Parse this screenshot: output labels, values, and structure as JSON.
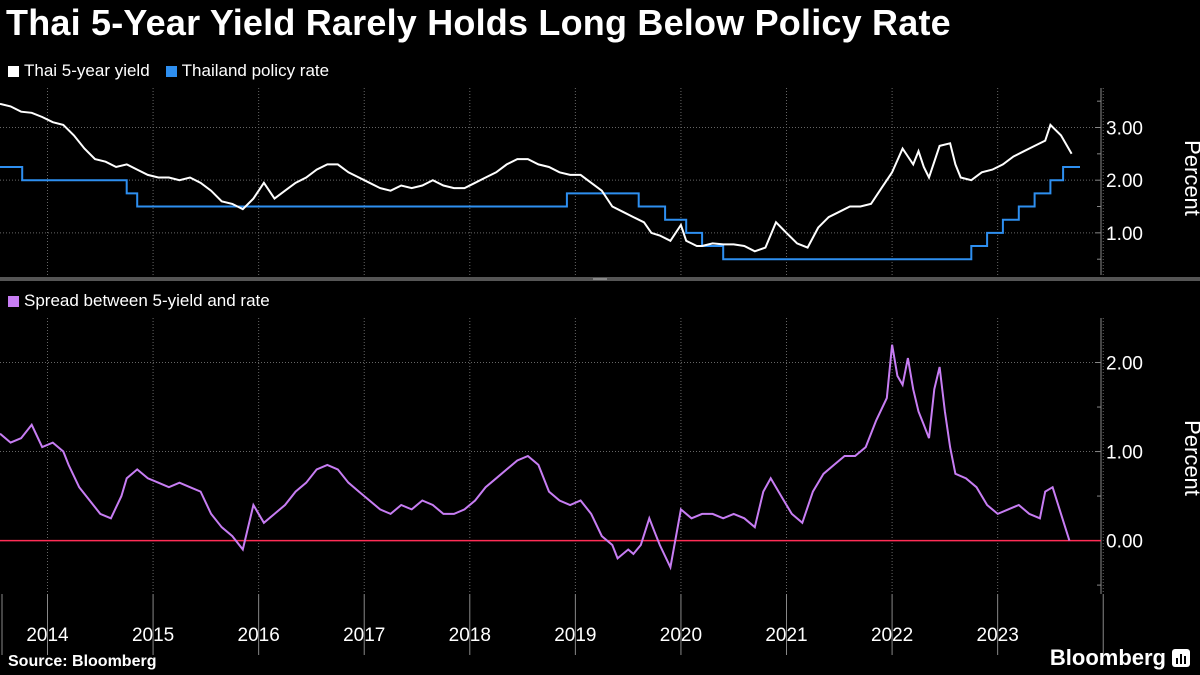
{
  "title": "Thai 5-Year Yield Rarely Holds Long Below Policy Rate",
  "source": "Source: Bloomberg",
  "brand": "Bloomberg",
  "colors": {
    "yield": "#ffffff",
    "policy": "#2e8ff0",
    "spread": "#c77df3",
    "zero_line": "#ff2d55",
    "grid": "#666666",
    "background": "#000000"
  },
  "chart_data": [
    {
      "type": "line",
      "panel": "top",
      "ylabel": "Percent",
      "ylim": [
        0.2,
        3.75
      ],
      "yticks": [
        1.0,
        2.0,
        3.0
      ],
      "ytick_labels": [
        "1.00",
        "2.00",
        "3.00"
      ],
      "legend": [
        "Thai 5-year yield",
        "Thailand policy rate"
      ],
      "xlim": [
        2013.55,
        2023.78
      ],
      "series": [
        {
          "name": "Thai 5-year yield",
          "x": [
            2013.55,
            2013.65,
            2013.75,
            2013.85,
            2013.95,
            2014.05,
            2014.15,
            2014.25,
            2014.35,
            2014.45,
            2014.55,
            2014.65,
            2014.75,
            2014.85,
            2014.95,
            2015.05,
            2015.15,
            2015.25,
            2015.35,
            2015.45,
            2015.55,
            2015.65,
            2015.75,
            2015.85,
            2015.95,
            2016.05,
            2016.1,
            2016.15,
            2016.25,
            2016.35,
            2016.45,
            2016.55,
            2016.65,
            2016.75,
            2016.85,
            2016.95,
            2017.05,
            2017.15,
            2017.25,
            2017.35,
            2017.45,
            2017.55,
            2017.65,
            2017.75,
            2017.85,
            2017.95,
            2018.05,
            2018.15,
            2018.25,
            2018.35,
            2018.45,
            2018.55,
            2018.65,
            2018.75,
            2018.85,
            2018.95,
            2019.05,
            2019.15,
            2019.25,
            2019.35,
            2019.45,
            2019.55,
            2019.65,
            2019.72,
            2019.8,
            2019.9,
            2020.0,
            2020.05,
            2020.1,
            2020.15,
            2020.2,
            2020.3,
            2020.4,
            2020.5,
            2020.6,
            2020.7,
            2020.8,
            2020.9,
            2021.0,
            2021.1,
            2021.2,
            2021.3,
            2021.4,
            2021.5,
            2021.6,
            2021.7,
            2021.8,
            2021.9,
            2022.0,
            2022.1,
            2022.15,
            2022.2,
            2022.25,
            2022.3,
            2022.35,
            2022.45,
            2022.55,
            2022.6,
            2022.65,
            2022.75,
            2022.85,
            2022.95,
            2023.05,
            2023.15,
            2023.25,
            2023.35,
            2023.45,
            2023.5,
            2023.6,
            2023.7
          ],
          "values": [
            3.45,
            3.4,
            3.3,
            3.28,
            3.2,
            3.1,
            3.05,
            2.85,
            2.6,
            2.4,
            2.35,
            2.25,
            2.3,
            2.2,
            2.1,
            2.05,
            2.05,
            2.0,
            2.05,
            1.95,
            1.8,
            1.6,
            1.55,
            1.45,
            1.65,
            1.95,
            1.8,
            1.65,
            1.8,
            1.95,
            2.05,
            2.2,
            2.3,
            2.3,
            2.15,
            2.05,
            1.95,
            1.85,
            1.8,
            1.9,
            1.85,
            1.9,
            2.0,
            1.9,
            1.85,
            1.85,
            1.95,
            2.05,
            2.15,
            2.3,
            2.4,
            2.4,
            2.3,
            2.25,
            2.15,
            2.1,
            2.1,
            1.95,
            1.8,
            1.5,
            1.4,
            1.3,
            1.2,
            1.0,
            0.95,
            0.85,
            1.15,
            0.85,
            0.8,
            0.75,
            0.75,
            0.8,
            0.78,
            0.78,
            0.75,
            0.65,
            0.72,
            1.2,
            1.0,
            0.8,
            0.72,
            1.1,
            1.3,
            1.4,
            1.5,
            1.5,
            1.55,
            1.85,
            2.15,
            2.6,
            2.45,
            2.3,
            2.55,
            2.25,
            2.05,
            2.65,
            2.7,
            2.3,
            2.05,
            2.0,
            2.15,
            2.2,
            2.3,
            2.45,
            2.55,
            2.65,
            2.75,
            3.05,
            2.85,
            2.5
          ],
          "color": "#ffffff"
        },
        {
          "name": "Thailand policy rate",
          "x": [
            2013.55,
            2013.76,
            2013.76,
            2014.75,
            2014.75,
            2014.85,
            2014.85,
            2015.3,
            2015.3,
            2018.92,
            2018.92,
            2019.6,
            2019.6,
            2019.85,
            2019.85,
            2020.05,
            2020.05,
            2020.2,
            2020.2,
            2020.4,
            2020.4,
            2022.75,
            2022.75,
            2022.9,
            2022.9,
            2023.05,
            2023.05,
            2023.2,
            2023.2,
            2023.35,
            2023.35,
            2023.5,
            2023.5,
            2023.62,
            2023.62,
            2023.78
          ],
          "values": [
            2.25,
            2.25,
            2.0,
            2.0,
            1.75,
            1.75,
            1.5,
            1.5,
            1.5,
            1.5,
            1.75,
            1.75,
            1.5,
            1.5,
            1.25,
            1.25,
            1.0,
            1.0,
            0.75,
            0.75,
            0.5,
            0.5,
            0.75,
            0.75,
            1.0,
            1.0,
            1.25,
            1.25,
            1.5,
            1.5,
            1.75,
            1.75,
            2.0,
            2.0,
            2.25,
            2.25
          ],
          "color": "#2e8ff0"
        }
      ]
    },
    {
      "type": "line",
      "panel": "bottom",
      "ylabel": "Percent",
      "ylim": [
        -0.6,
        2.5
      ],
      "yticks": [
        0.0,
        1.0,
        2.0
      ],
      "ytick_labels": [
        "0.00",
        "1.00",
        "2.00"
      ],
      "legend": [
        "Spread between 5-yield and rate"
      ],
      "xlim": [
        2013.55,
        2023.78
      ],
      "x_tick_labels": [
        "2014",
        "2015",
        "2016",
        "2017",
        "2018",
        "2019",
        "2020",
        "2021",
        "2022",
        "2023"
      ],
      "series": [
        {
          "name": "Spread between 5-yield and rate",
          "x": [
            2013.55,
            2013.65,
            2013.75,
            2013.85,
            2013.95,
            2014.05,
            2014.15,
            2014.2,
            2014.3,
            2014.4,
            2014.5,
            2014.6,
            2014.7,
            2014.75,
            2014.85,
            2014.95,
            2015.05,
            2015.15,
            2015.25,
            2015.35,
            2015.45,
            2015.55,
            2015.65,
            2015.75,
            2015.85,
            2015.95,
            2016.05,
            2016.15,
            2016.25,
            2016.35,
            2016.45,
            2016.55,
            2016.65,
            2016.75,
            2016.85,
            2016.95,
            2017.05,
            2017.15,
            2017.25,
            2017.35,
            2017.45,
            2017.55,
            2017.65,
            2017.75,
            2017.85,
            2017.95,
            2018.05,
            2018.15,
            2018.25,
            2018.35,
            2018.45,
            2018.55,
            2018.65,
            2018.75,
            2018.85,
            2018.95,
            2019.05,
            2019.15,
            2019.25,
            2019.35,
            2019.4,
            2019.5,
            2019.55,
            2019.62,
            2019.7,
            2019.75,
            2019.8,
            2019.9,
            2020.0,
            2020.1,
            2020.2,
            2020.3,
            2020.4,
            2020.5,
            2020.6,
            2020.7,
            2020.78,
            2020.85,
            2020.95,
            2021.05,
            2021.15,
            2021.25,
            2021.35,
            2021.45,
            2021.55,
            2021.65,
            2021.75,
            2021.85,
            2021.95,
            2022.0,
            2022.05,
            2022.1,
            2022.15,
            2022.2,
            2022.25,
            2022.3,
            2022.35,
            2022.4,
            2022.45,
            2022.5,
            2022.55,
            2022.6,
            2022.7,
            2022.8,
            2022.9,
            2023.0,
            2023.1,
            2023.2,
            2023.3,
            2023.4,
            2023.45,
            2023.52,
            2023.6,
            2023.68
          ],
          "values": [
            1.2,
            1.1,
            1.15,
            1.3,
            1.05,
            1.1,
            1.0,
            0.85,
            0.6,
            0.45,
            0.3,
            0.25,
            0.5,
            0.7,
            0.8,
            0.7,
            0.65,
            0.6,
            0.65,
            0.6,
            0.55,
            0.3,
            0.15,
            0.05,
            -0.1,
            0.4,
            0.2,
            0.3,
            0.4,
            0.55,
            0.65,
            0.8,
            0.85,
            0.8,
            0.65,
            0.55,
            0.45,
            0.35,
            0.3,
            0.4,
            0.35,
            0.45,
            0.4,
            0.3,
            0.3,
            0.35,
            0.45,
            0.6,
            0.7,
            0.8,
            0.9,
            0.95,
            0.85,
            0.55,
            0.45,
            0.4,
            0.45,
            0.3,
            0.05,
            -0.05,
            -0.2,
            -0.1,
            -0.15,
            -0.05,
            0.25,
            0.1,
            -0.05,
            -0.3,
            0.35,
            0.25,
            0.3,
            0.3,
            0.25,
            0.3,
            0.25,
            0.15,
            0.55,
            0.7,
            0.5,
            0.3,
            0.2,
            0.55,
            0.75,
            0.85,
            0.95,
            0.95,
            1.05,
            1.35,
            1.6,
            2.2,
            1.85,
            1.75,
            2.05,
            1.7,
            1.45,
            1.3,
            1.15,
            1.7,
            1.95,
            1.45,
            1.05,
            0.75,
            0.7,
            0.6,
            0.4,
            0.3,
            0.35,
            0.4,
            0.3,
            0.25,
            0.55,
            0.6,
            0.3,
            0.0
          ],
          "color": "#c77df3"
        }
      ]
    }
  ]
}
